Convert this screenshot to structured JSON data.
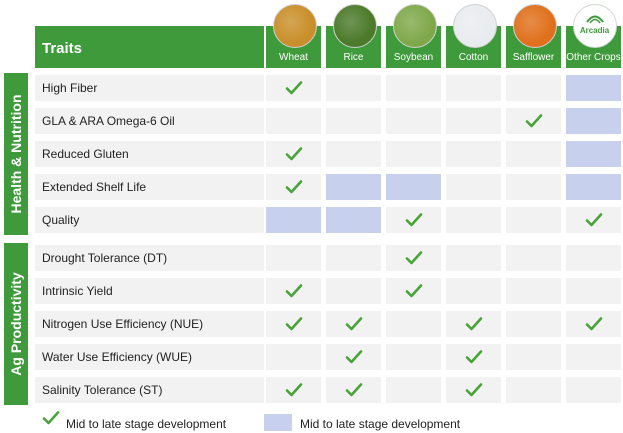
{
  "header": {
    "traits_label": "Traits"
  },
  "crops": [
    {
      "key": "wheat",
      "label": "Wheat",
      "icon": "wheat-photo-icon",
      "color": "#c98f2a"
    },
    {
      "key": "rice",
      "label": "Rice",
      "icon": "rice-photo-icon",
      "color": "#4b7a2a"
    },
    {
      "key": "soybean",
      "label": "Soybean",
      "icon": "soybean-photo-icon",
      "color": "#7fa84a"
    },
    {
      "key": "cotton",
      "label": "Cotton",
      "icon": "cotton-photo-icon",
      "color": "#e9ecef"
    },
    {
      "key": "safflower",
      "label": "Safflower",
      "icon": "safflower-photo-icon",
      "color": "#e0701c"
    },
    {
      "key": "other",
      "label": "Other Crops",
      "icon": "arcadia-logo",
      "logo_text": "Arcadia"
    }
  ],
  "sections": [
    {
      "key": "health",
      "label": "Health & Nutrition",
      "rows": [
        {
          "label": "High Fiber",
          "cells": [
            "check",
            "",
            "",
            "",
            "",
            "blue"
          ]
        },
        {
          "label": "GLA & ARA Omega-6 Oil",
          "cells": [
            "",
            "",
            "",
            "",
            "check",
            "blue"
          ]
        },
        {
          "label": "Reduced Gluten",
          "cells": [
            "check",
            "",
            "",
            "",
            "",
            "blue"
          ]
        },
        {
          "label": "Extended Shelf Life",
          "cells": [
            "check",
            "blue",
            "blue",
            "",
            "",
            "blue"
          ]
        },
        {
          "label": "Quality",
          "cells": [
            "blue",
            "blue",
            "check",
            "",
            "",
            "check"
          ]
        }
      ]
    },
    {
      "key": "ag",
      "label": "Ag Productivity",
      "rows": [
        {
          "label": "Drought Tolerance (DT)",
          "cells": [
            "",
            "",
            "check",
            "",
            "",
            ""
          ]
        },
        {
          "label": "Intrinsic Yield",
          "cells": [
            "check",
            "",
            "check",
            "",
            "",
            ""
          ]
        },
        {
          "label": "Nitrogen Use Efficiency (NUE)",
          "cells": [
            "check",
            "check",
            "",
            "check",
            "",
            "check"
          ]
        },
        {
          "label": "Water Use Efficiency (WUE)",
          "cells": [
            "",
            "check",
            "",
            "check",
            "",
            ""
          ]
        },
        {
          "label": "Salinity Tolerance (ST)",
          "cells": [
            "check",
            "check",
            "",
            "check",
            "",
            ""
          ]
        }
      ]
    }
  ],
  "legend": {
    "check_label": "Mid to late stage development",
    "blue_label": "Mid to late stage development"
  },
  "colors": {
    "green": "#3f9a3c",
    "check": "#4aa339",
    "blue": "#c7d1ee",
    "cell": "#f2f2f2"
  }
}
